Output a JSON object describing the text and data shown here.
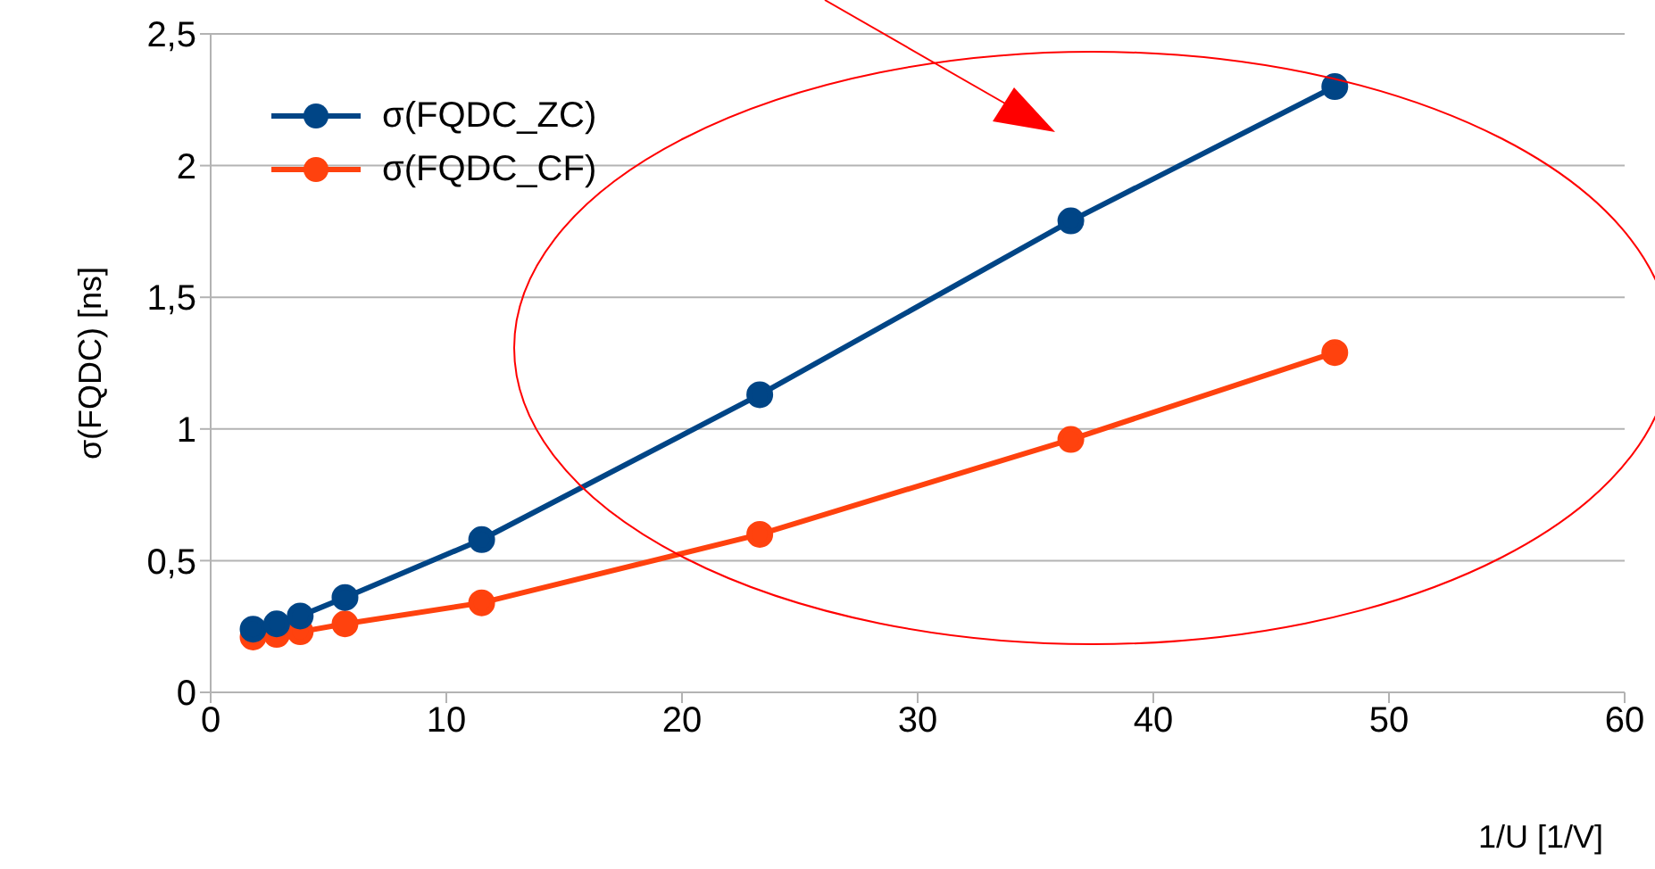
{
  "chart_data": {
    "type": "line",
    "xlabel": "1/U  [1/V]",
    "ylabel": "σ(FQDC) [ns]",
    "x": [
      1.8,
      2.8,
      3.8,
      5.7,
      11.5,
      23.3,
      36.5,
      47.7
    ],
    "series": [
      {
        "name": "σ(FQDC_ZC)",
        "color": "#004586",
        "values": [
          0.24,
          0.26,
          0.29,
          0.36,
          0.58,
          1.13,
          1.79,
          2.3
        ]
      },
      {
        "name": "σ(FQDC_CF)",
        "color": "#ff420e",
        "values": [
          0.21,
          0.22,
          0.23,
          0.26,
          0.34,
          0.6,
          0.96,
          1.29
        ]
      }
    ],
    "xlim": [
      0,
      60
    ],
    "xticks": [
      0,
      10,
      20,
      30,
      40,
      50,
      60
    ],
    "ylim": [
      0,
      2.5
    ],
    "yticks": [
      0,
      {
        "value": 0.5,
        "label": "0,5"
      },
      1,
      {
        "value": 1.5,
        "label": "1,5"
      },
      2,
      {
        "value": 2.5,
        "label": "2,5"
      }
    ],
    "grid": "y",
    "legend": "top left",
    "marker": "circle",
    "line_style": "solid"
  }
}
